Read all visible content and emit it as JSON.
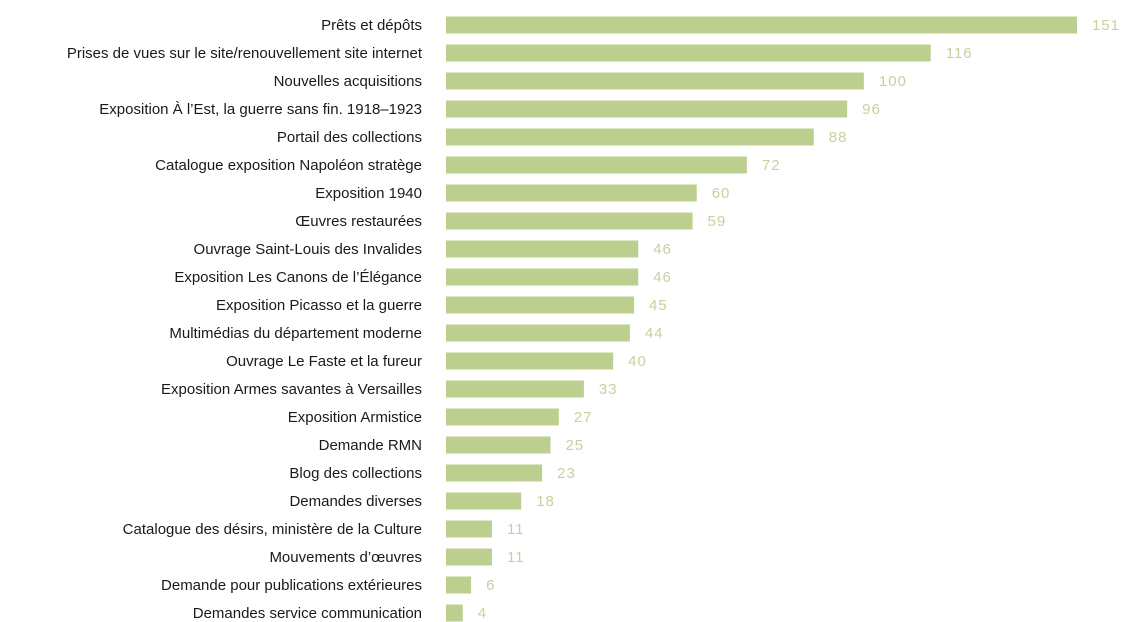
{
  "chart_data": {
    "type": "barh",
    "categories": [
      "Prêts et dépôts",
      "Prises de vues sur le site/renouvellement site internet",
      "Nouvelles acquisitions",
      "Exposition À l’Est, la guerre sans fin. 1918–1923",
      "Portail des collections",
      "Catalogue exposition Napoléon stratège",
      "Exposition 1940",
      "Œuvres restaurées",
      "Ouvrage Saint-Louis des Invalides",
      "Exposition Les Canons de l’Élégance",
      "Exposition Picasso et la guerre",
      "Multimédias du département moderne",
      "Ouvrage Le Faste et la fureur",
      "Exposition Armes savantes à Versailles",
      "Exposition Armistice",
      "Demande RMN",
      "Blog des collections",
      "Demandes diverses",
      "Catalogue des désirs, ministère de la Culture",
      "Mouvements d’œuvres",
      "Demande pour publications extérieures",
      "Demandes service communication"
    ],
    "values": [
      151,
      116,
      100,
      96,
      88,
      72,
      60,
      59,
      46,
      46,
      45,
      44,
      40,
      33,
      27,
      25,
      23,
      18,
      11,
      11,
      6,
      4
    ],
    "color": "#bccf8f",
    "label_color": "#c3d39c"
  }
}
